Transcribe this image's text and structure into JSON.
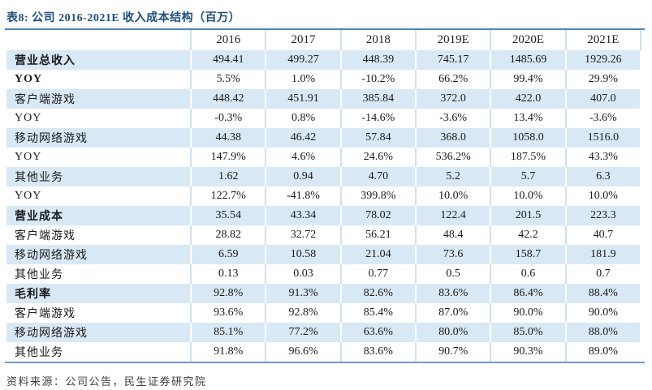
{
  "title": "表8: 公司 2016-2021E 收入成本结构（百万）",
  "source": "资料来源：公司公告，民生证券研究院",
  "colors": {
    "title_text": "#1e4e79",
    "rule_top": "#4f81bd",
    "rule_bottom": "#6d9ac8",
    "row_shade_blue": "#d9e8f5",
    "column_separator": "#cfe1f1",
    "body_text": "#1a1a1a"
  },
  "table": {
    "columns": [
      "",
      "2016",
      "2017",
      "2018",
      "2019E",
      "2020E",
      "2021E"
    ],
    "rows": [
      {
        "label": "营业总收入",
        "bold": true,
        "values": [
          "494.41",
          "499.27",
          "448.39",
          "745.17",
          "1485.69",
          "1929.26"
        ]
      },
      {
        "label": "YOY",
        "bold": true,
        "values": [
          "5.5%",
          "1.0%",
          "-10.2%",
          "66.2%",
          "99.4%",
          "29.9%"
        ]
      },
      {
        "label": "客户端游戏",
        "bold": false,
        "values": [
          "448.42",
          "451.91",
          "385.84",
          "372.0",
          "422.0",
          "407.0"
        ]
      },
      {
        "label": "YOY",
        "bold": false,
        "values": [
          "-0.3%",
          "0.8%",
          "-14.6%",
          "-3.6%",
          "13.4%",
          "-3.6%"
        ]
      },
      {
        "label": "移动网络游戏",
        "bold": false,
        "values": [
          "44.38",
          "46.42",
          "57.84",
          "368.0",
          "1058.0",
          "1516.0"
        ]
      },
      {
        "label": "YOY",
        "bold": false,
        "values": [
          "147.9%",
          "4.6%",
          "24.6%",
          "536.2%",
          "187.5%",
          "43.3%"
        ]
      },
      {
        "label": "其他业务",
        "bold": false,
        "values": [
          "1.62",
          "0.94",
          "4.70",
          "5.2",
          "5.7",
          "6.3"
        ]
      },
      {
        "label": "YOY",
        "bold": false,
        "values": [
          "122.7%",
          "-41.8%",
          "399.8%",
          "10.0%",
          "10.0%",
          "10.0%"
        ]
      },
      {
        "label": "营业成本",
        "bold": true,
        "values": [
          "35.54",
          "43.34",
          "78.02",
          "122.4",
          "201.5",
          "223.3"
        ]
      },
      {
        "label": "客户端游戏",
        "bold": false,
        "values": [
          "28.82",
          "32.72",
          "56.21",
          "48.4",
          "42.2",
          "40.7"
        ]
      },
      {
        "label": "移动网络游戏",
        "bold": false,
        "values": [
          "6.59",
          "10.58",
          "21.04",
          "73.6",
          "158.7",
          "181.9"
        ]
      },
      {
        "label": "其他业务",
        "bold": false,
        "values": [
          "0.13",
          "0.03",
          "0.77",
          "0.5",
          "0.6",
          "0.7"
        ]
      },
      {
        "label": "毛利率",
        "bold": true,
        "values": [
          "92.8%",
          "91.3%",
          "82.6%",
          "83.6%",
          "86.4%",
          "88.4%"
        ]
      },
      {
        "label": "客户端游戏",
        "bold": false,
        "values": [
          "93.6%",
          "92.8%",
          "85.4%",
          "87.0%",
          "90.0%",
          "90.0%"
        ]
      },
      {
        "label": "移动网络游戏",
        "bold": false,
        "values": [
          "85.1%",
          "77.2%",
          "63.6%",
          "80.0%",
          "85.0%",
          "88.0%"
        ]
      },
      {
        "label": "其他业务",
        "bold": false,
        "values": [
          "91.8%",
          "96.6%",
          "83.6%",
          "90.7%",
          "90.3%",
          "89.0%"
        ]
      }
    ]
  }
}
